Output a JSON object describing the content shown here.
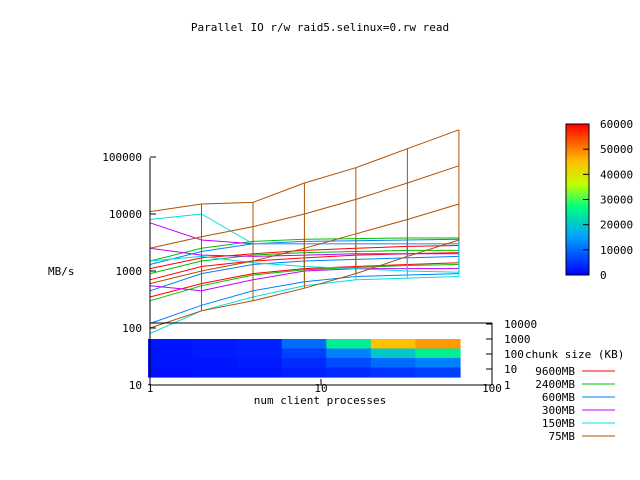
{
  "chart_data": {
    "type": "surface",
    "title": "Parallel IO r/w raid5.selinux=0.rw read",
    "xlabel": "num client processes",
    "ylabel": "MB/s",
    "x_scale": "log",
    "y_scale": "log",
    "x_ticks": [
      "1",
      "10",
      "100"
    ],
    "y_ticks": [
      "10",
      "100",
      "1000",
      "10000",
      "100000"
    ],
    "depth_axis_label": "chunk size (KB)",
    "depth_ticks": [
      "1",
      "10",
      "100",
      "1000",
      "10000"
    ],
    "colorbar": {
      "ticks": [
        "0",
        "10000",
        "20000",
        "30000",
        "40000",
        "50000",
        "60000"
      ],
      "range": [
        0,
        60000
      ]
    },
    "legend_position": "bottom-right",
    "x": [
      1,
      2,
      4,
      8,
      16,
      32,
      64
    ],
    "series": [
      {
        "name": "9600MB",
        "color": "#ff0000",
        "surfaces": [
          [
            1100,
            1700,
            2000,
            2300,
            2500,
            2700,
            2800
          ],
          [
            700,
            1200,
            1500,
            1700,
            1900,
            2000,
            2100
          ],
          [
            350,
            600,
            900,
            1100,
            1200,
            1300,
            1400
          ]
        ]
      },
      {
        "name": "2400MB",
        "color": "#00c000",
        "surfaces": [
          [
            1500,
            2500,
            3300,
            3600,
            3700,
            3800,
            3800
          ],
          [
            900,
            1500,
            1900,
            2100,
            2200,
            2300,
            2300
          ],
          [
            300,
            550,
            850,
            1050,
            1150,
            1250,
            1300
          ]
        ]
      },
      {
        "name": "600MB",
        "color": "#0080ff",
        "surfaces": [
          [
            1300,
            2200,
            3000,
            3300,
            3400,
            3500,
            3600
          ],
          [
            450,
            900,
            1300,
            1500,
            1600,
            1700,
            1800
          ],
          [
            120,
            250,
            450,
            650,
            800,
            850,
            900
          ]
        ]
      },
      {
        "name": "300MB",
        "color": "#c000ff",
        "surfaces": [
          [
            7000,
            3500,
            3000,
            3000,
            3000,
            3000,
            3000
          ],
          [
            2500,
            1900,
            1800,
            1900,
            2000,
            2000,
            2000
          ],
          [
            550,
            450,
            700,
            1000,
            1100,
            1100,
            1100
          ]
        ]
      },
      {
        "name": "150MB",
        "color": "#00e0e0",
        "surfaces": [
          [
            8000,
            10000,
            3000,
            3000,
            3000,
            3000,
            3000
          ],
          [
            1500,
            1800,
            1400,
            1200,
            1100,
            1000,
            950
          ],
          [
            80,
            200,
            350,
            550,
            700,
            750,
            800
          ]
        ]
      },
      {
        "name": "75MB",
        "color": "#b05000",
        "surfaces": [
          [
            11000,
            15000,
            16000,
            35000,
            65000,
            140000,
            300000
          ],
          [
            2500,
            4000,
            6000,
            10000,
            18000,
            35000,
            70000
          ],
          [
            600,
            1000,
            1500,
            2500,
            4500,
            8000,
            15000
          ],
          [
            100,
            200,
            300,
            500,
            900,
            1800,
            3500
          ]
        ]
      }
    ],
    "heatmap": {
      "columns": 7,
      "rows": 4,
      "values": [
        [
          2000,
          2500,
          3000,
          10000,
          25000,
          45000,
          48000
        ],
        [
          2000,
          2500,
          3000,
          6000,
          12000,
          20000,
          25000
        ],
        [
          2000,
          2000,
          2500,
          4000,
          7000,
          10000,
          12000
        ],
        [
          1500,
          2000,
          2000,
          3000,
          4000,
          5000,
          6000
        ]
      ]
    }
  }
}
